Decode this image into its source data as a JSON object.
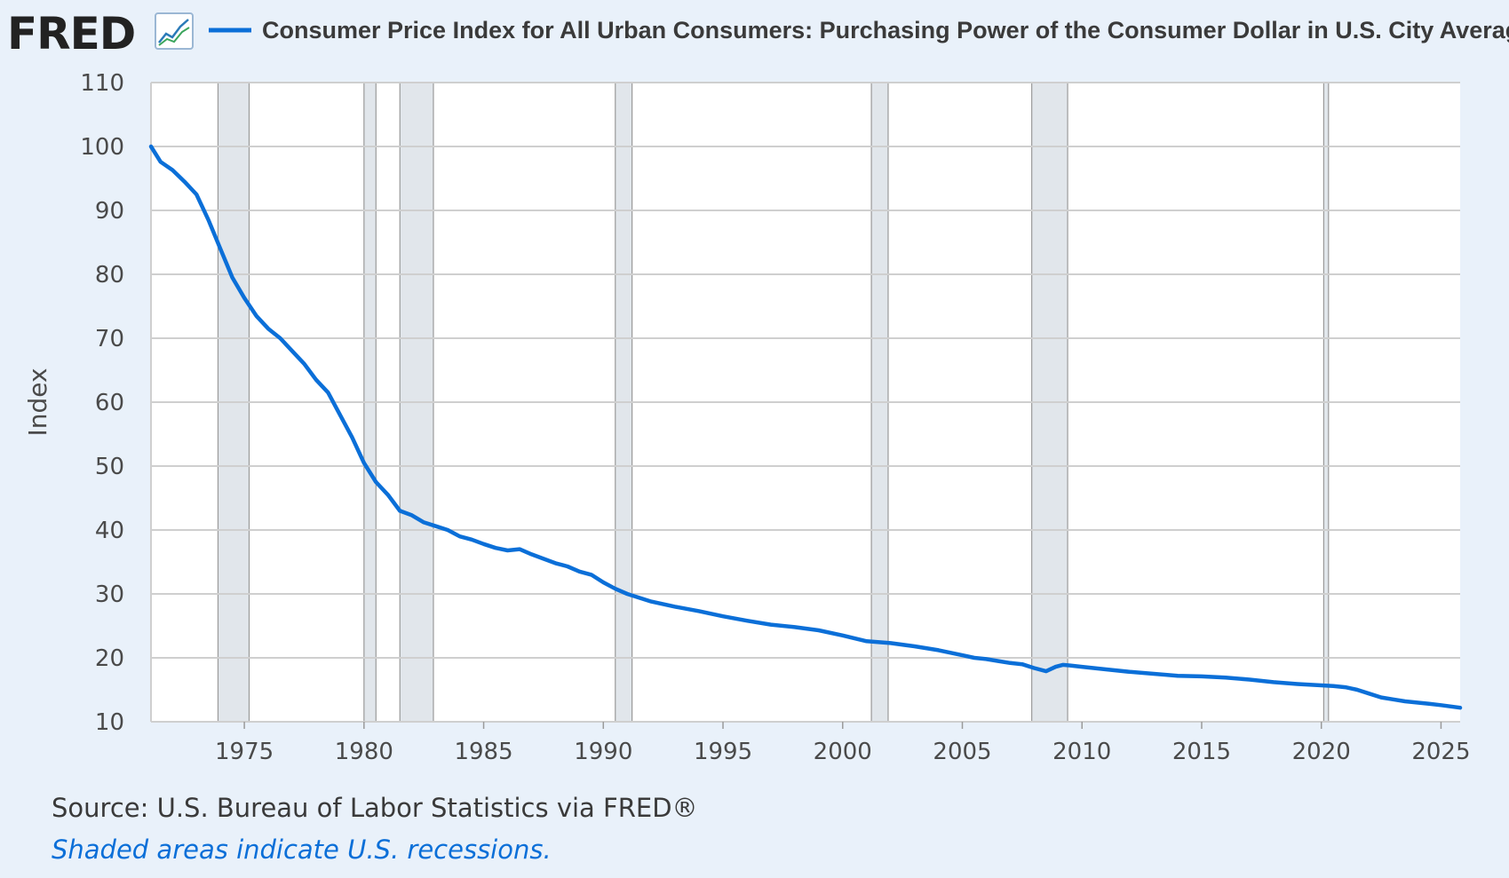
{
  "header": {
    "logo_text": "FRED",
    "legend_label": "Consumer Price Index for All Urban Consumers: Purchasing Power of the Consumer Dollar in U.S. City Average"
  },
  "footer": {
    "source": "Source: U.S. Bureau of Labor Statistics via FRED®",
    "note": "Shaded areas indicate U.S. recessions."
  },
  "colors": {
    "background": "#e9f1fa",
    "plot_background": "#ffffff",
    "series": "#0b6fd8",
    "recession_fill": "#e1e6eb",
    "grid": "#cfcfcf",
    "logo": "#222222"
  },
  "icons": {
    "logo_chart": "line-chart-icon"
  },
  "chart_data": {
    "type": "line",
    "title": "",
    "xlabel": "",
    "ylabel": "Index",
    "xlim": [
      1971.1,
      2025.8
    ],
    "ylim": [
      10,
      110
    ],
    "y_ticks": [
      10,
      20,
      30,
      40,
      50,
      60,
      70,
      80,
      90,
      100,
      110
    ],
    "x_ticks": [
      1975,
      1980,
      1985,
      1990,
      1995,
      2000,
      2005,
      2010,
      2015,
      2020,
      2025
    ],
    "grid": true,
    "legend": "top",
    "recessions": [
      [
        1973.9,
        1975.2
      ],
      [
        1980.0,
        1980.5
      ],
      [
        1981.5,
        1982.9
      ],
      [
        1990.5,
        1991.2
      ],
      [
        2001.2,
        2001.9
      ],
      [
        2007.9,
        2009.4
      ],
      [
        2020.1,
        2020.3
      ]
    ],
    "series": [
      {
        "name": "Consumer Price Index for All Urban Consumers: Purchasing Power of the Consumer Dollar in U.S. City Average",
        "x": [
          1971.1,
          1971.5,
          1972.0,
          1972.5,
          1973.0,
          1973.5,
          1974.0,
          1974.5,
          1975.0,
          1975.5,
          1976.0,
          1976.5,
          1977.0,
          1977.5,
          1978.0,
          1978.5,
          1979.0,
          1979.5,
          1980.0,
          1980.5,
          1981.0,
          1981.5,
          1982.0,
          1982.5,
          1983.0,
          1983.5,
          1984.0,
          1984.5,
          1985.0,
          1985.5,
          1986.0,
          1986.5,
          1987.0,
          1987.5,
          1988.0,
          1988.5,
          1989.0,
          1989.5,
          1990.0,
          1990.5,
          1991.0,
          1992.0,
          1993.0,
          1994.0,
          1995.0,
          1996.0,
          1997.0,
          1998.0,
          1999.0,
          2000.0,
          2001.0,
          2002.0,
          2003.0,
          2004.0,
          2005.0,
          2005.5,
          2006.0,
          2006.5,
          2007.0,
          2007.5,
          2008.0,
          2008.5,
          2008.9,
          2009.2,
          2009.5,
          2010.0,
          2011.0,
          2012.0,
          2013.0,
          2014.0,
          2015.0,
          2016.0,
          2017.0,
          2018.0,
          2019.0,
          2020.0,
          2020.5,
          2021.0,
          2021.5,
          2022.0,
          2022.5,
          2023.0,
          2023.5,
          2024.0,
          2024.5,
          2025.0,
          2025.8
        ],
        "values": [
          100.0,
          97.6,
          96.3,
          94.5,
          92.5,
          88.5,
          84.0,
          79.5,
          76.3,
          73.5,
          71.5,
          70.0,
          68.0,
          66.0,
          63.5,
          61.5,
          58.0,
          54.5,
          50.5,
          47.5,
          45.5,
          43.0,
          42.3,
          41.2,
          40.6,
          40.0,
          39.0,
          38.5,
          37.8,
          37.2,
          36.8,
          37.0,
          36.2,
          35.5,
          34.8,
          34.3,
          33.5,
          33.0,
          31.8,
          30.8,
          30.0,
          28.8,
          28.0,
          27.3,
          26.5,
          25.8,
          25.2,
          24.8,
          24.3,
          23.5,
          22.6,
          22.3,
          21.8,
          21.2,
          20.4,
          20.0,
          19.8,
          19.5,
          19.2,
          19.0,
          18.4,
          17.9,
          18.6,
          18.9,
          18.8,
          18.6,
          18.2,
          17.8,
          17.5,
          17.2,
          17.1,
          16.9,
          16.6,
          16.2,
          15.9,
          15.7,
          15.6,
          15.4,
          15.0,
          14.4,
          13.8,
          13.5,
          13.2,
          13.0,
          12.8,
          12.6,
          12.2
        ]
      }
    ]
  }
}
